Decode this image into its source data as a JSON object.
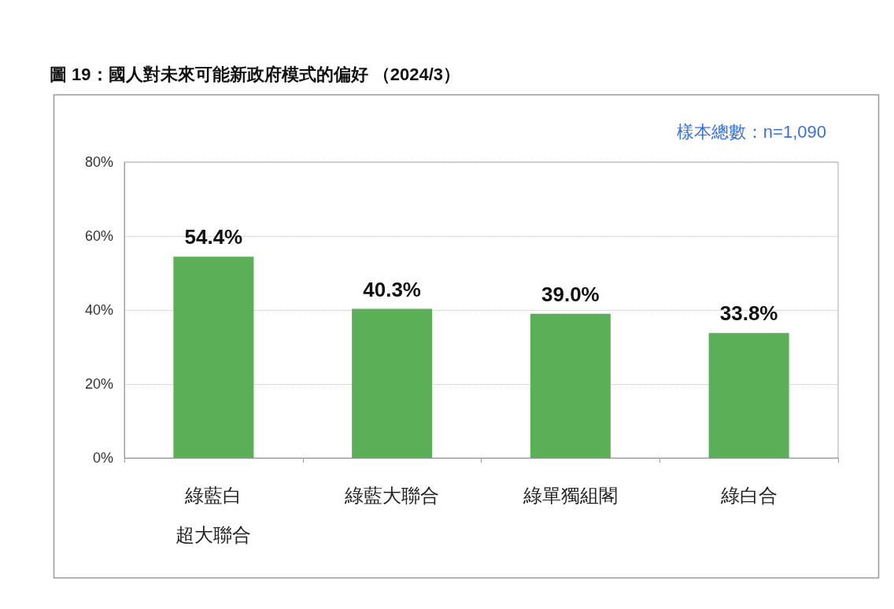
{
  "chart_data": {
    "type": "bar",
    "title": "圖 19：國人對未來可能新政府模式的偏好 （2024/3）",
    "categories": [
      "綠藍白超大聯合",
      "綠藍大聯合",
      "綠單獨組閣",
      "綠白合"
    ],
    "values": [
      54.4,
      40.3,
      39.0,
      33.8
    ],
    "value_labels": [
      "54.4%",
      "40.3%",
      "39.0%",
      "33.8%"
    ],
    "color": "#5aaf57",
    "ylim": [
      0,
      80
    ],
    "yticks": [
      {
        "value": 0,
        "label": "0%"
      },
      {
        "value": 20,
        "label": "20%"
      },
      {
        "value": 40,
        "label": "40%"
      },
      {
        "value": 60,
        "label": "60%"
      },
      {
        "value": 80,
        "label": "80%"
      }
    ],
    "grid": "y",
    "annotations": [
      "樣本總數：n=1,090"
    ]
  }
}
